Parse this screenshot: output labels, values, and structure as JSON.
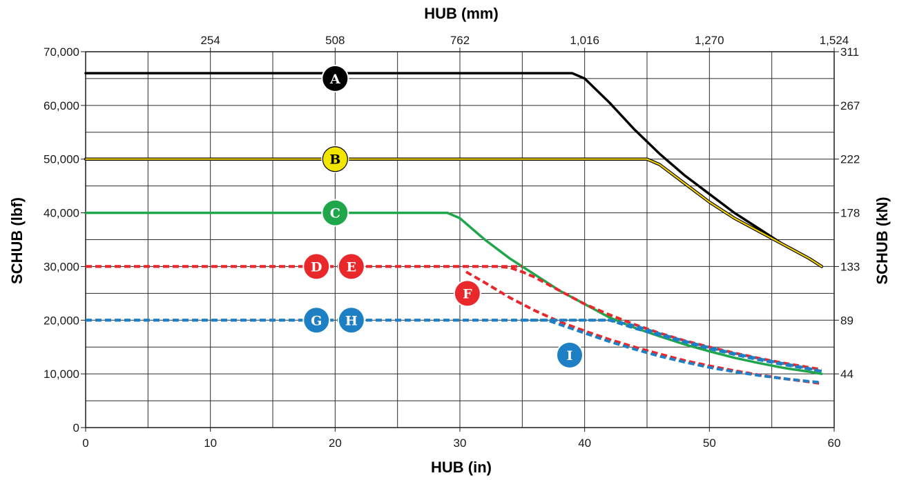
{
  "chart_data": {
    "type": "line",
    "title": "",
    "xlabel": "HUB (in)",
    "x2label": "HUB (mm)",
    "ylabel": "SCHUB (lbf)",
    "y2label": "SCHUB (kN)",
    "xlim": [
      0,
      60
    ],
    "ylim": [
      0,
      70000
    ],
    "grid": true,
    "legend": "none",
    "x_ticks": [
      "0",
      "10",
      "20",
      "30",
      "40",
      "50",
      "60"
    ],
    "x_tick_values": [
      0,
      10,
      20,
      30,
      40,
      50,
      60
    ],
    "x2_ticks": [
      "254",
      "508",
      "762",
      "1,016",
      "1,270",
      "1,524"
    ],
    "x2_tick_values": [
      10,
      20,
      30,
      40,
      50,
      60
    ],
    "y_ticks": [
      "0",
      "10,000",
      "20,000",
      "30,000",
      "40,000",
      "50,000",
      "60,000",
      "70,000"
    ],
    "y_tick_values": [
      0,
      10000,
      20000,
      30000,
      40000,
      50000,
      60000,
      70000
    ],
    "y2_ticks": [
      "44",
      "89",
      "133",
      "178",
      "222",
      "267",
      "311"
    ],
    "y2_tick_values": [
      10000,
      20000,
      30000,
      40000,
      50000,
      60000,
      70000
    ],
    "series": [
      {
        "name": "A",
        "color": "#000000",
        "style": "solid",
        "x": [
          0,
          39,
          40,
          42,
          44,
          46,
          48,
          50,
          52,
          54,
          56,
          58,
          59
        ],
        "y": [
          66000,
          66000,
          65000,
          60500,
          55500,
          51000,
          47000,
          43500,
          40000,
          37000,
          34000,
          31500,
          30000
        ]
      },
      {
        "name": "B",
        "color": "#f2d300",
        "style": "solid-outlined",
        "x": [
          0,
          45,
          46,
          48,
          50,
          52,
          54,
          56,
          58,
          59
        ],
        "y": [
          50000,
          50000,
          49000,
          45500,
          42000,
          39000,
          36500,
          34000,
          31500,
          30000
        ]
      },
      {
        "name": "C",
        "color": "#1fa64a",
        "style": "solid",
        "x": [
          0,
          29,
          30,
          32,
          34,
          36,
          38,
          40,
          42,
          44,
          46,
          48,
          50,
          52,
          54,
          56,
          58,
          59
        ],
        "y": [
          40000,
          40000,
          39000,
          35000,
          31500,
          28500,
          25500,
          23000,
          20500,
          18600,
          17000,
          15500,
          14200,
          13000,
          12000,
          11100,
          10400,
          10000
        ]
      },
      {
        "name": "D",
        "color": "#e8282b",
        "style": "dashed",
        "x": [
          0,
          35
        ],
        "y": [
          30000,
          30000
        ]
      },
      {
        "name": "E",
        "color": "#e8282b",
        "style": "dashed",
        "x": [
          0,
          33,
          34,
          35,
          36,
          38,
          40,
          42,
          44,
          46,
          48,
          50,
          52,
          54,
          56,
          58,
          59
        ],
        "y": [
          30000,
          30000,
          29800,
          29000,
          28000,
          25500,
          23000,
          21000,
          19200,
          17600,
          16200,
          15000,
          13900,
          12900,
          12000,
          11200,
          10800
        ]
      },
      {
        "name": "F",
        "color": "#e8282b",
        "style": "dashed",
        "x": [
          30.5,
          32,
          34,
          36,
          38,
          40,
          42,
          44,
          46,
          48,
          50,
          52,
          54,
          56,
          58,
          59
        ],
        "y": [
          29000,
          27000,
          24200,
          21800,
          19700,
          18000,
          16400,
          15000,
          13700,
          12500,
          11500,
          10600,
          9800,
          9100,
          8500,
          8200
        ]
      },
      {
        "name": "G",
        "color": "#1f7fc4",
        "style": "dashed",
        "x": [
          0,
          37,
          38,
          40,
          42,
          44,
          46,
          48,
          50,
          52,
          54,
          56,
          58,
          59
        ],
        "y": [
          20000,
          20000,
          19200,
          17600,
          16000,
          14600,
          13300,
          12200,
          11200,
          10400,
          9700,
          9100,
          8600,
          8400
        ]
      },
      {
        "name": "H",
        "color": "#1f7fc4",
        "style": "dashed",
        "x": [
          0,
          42,
          44,
          46,
          48,
          50,
          52,
          54,
          56,
          58,
          59
        ],
        "y": [
          20000,
          20000,
          18500,
          17200,
          15900,
          14700,
          13600,
          12600,
          11700,
          10900,
          10500
        ]
      },
      {
        "name": "I",
        "color": "#1f7fc4",
        "style": "dashed",
        "x": [
          35,
          38,
          40,
          42,
          44,
          46,
          48,
          50,
          52,
          54,
          56,
          58,
          59
        ],
        "y": [
          20000,
          20000,
          20000,
          20000,
          19000,
          17500,
          16100,
          14900,
          13800,
          12800,
          11900,
          11000,
          10500
        ]
      }
    ],
    "markers": [
      {
        "label": "A",
        "fill": "#000000",
        "text_color": "#ffffff",
        "x": 20,
        "y": 65000
      },
      {
        "label": "B",
        "fill": "#f2e600",
        "text_color": "#000000",
        "x": 20,
        "y": 50000
      },
      {
        "label": "C",
        "fill": "#1fa64a",
        "text_color": "#ffffff",
        "x": 20,
        "y": 40000
      },
      {
        "label": "D",
        "fill": "#e8282b",
        "text_color": "#ffffff",
        "x": 18.5,
        "y": 30000
      },
      {
        "label": "E",
        "fill": "#e8282b",
        "text_color": "#ffffff",
        "x": 21.3,
        "y": 30000
      },
      {
        "label": "F",
        "fill": "#e8282b",
        "text_color": "#ffffff",
        "x": 30.6,
        "y": 25000
      },
      {
        "label": "G",
        "fill": "#1f7fc4",
        "text_color": "#ffffff",
        "x": 18.5,
        "y": 20000
      },
      {
        "label": "H",
        "fill": "#1f7fc4",
        "text_color": "#ffffff",
        "x": 21.3,
        "y": 20000
      },
      {
        "label": "I",
        "fill": "#1f7fc4",
        "text_color": "#ffffff",
        "x": 38.8,
        "y": 13500
      }
    ]
  }
}
